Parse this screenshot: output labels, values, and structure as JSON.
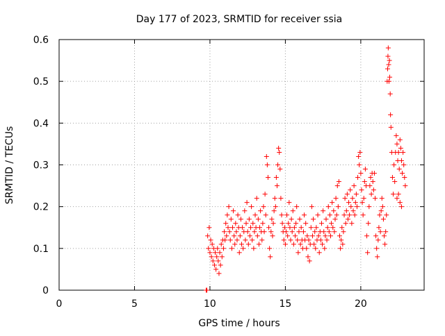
{
  "chart_data": {
    "type": "scatter",
    "title": "Day 177 of 2023, SRMTID for receiver ssia",
    "xlabel": "GPS time / hours",
    "ylabel": "SRMTID / TECUs",
    "xlim": [
      0,
      24.2
    ],
    "ylim": [
      0,
      0.6
    ],
    "xticks": [
      0,
      5,
      10,
      15,
      20
    ],
    "yticks": [
      0,
      0.1,
      0.2,
      0.3,
      0.4,
      0.5,
      0.6
    ],
    "xtick_labels": [
      "0",
      "5",
      "10",
      "15",
      "20"
    ],
    "ytick_labels": [
      "0",
      "0.1",
      "0.2",
      "0.3",
      "0.4",
      "0.5",
      "0.6"
    ],
    "grid": true,
    "marker": "+",
    "series": [
      {
        "name": "SRMTID",
        "color": "#ff0000",
        "marker": "plus",
        "points": [
          [
            9.75,
            0.0
          ],
          [
            9.8,
            0.0
          ],
          [
            9.85,
            0.13
          ],
          [
            9.9,
            0.1
          ],
          [
            9.95,
            0.15
          ],
          [
            10.0,
            0.09
          ],
          [
            10.05,
            0.12
          ],
          [
            10.1,
            0.08
          ],
          [
            10.15,
            0.11
          ],
          [
            10.2,
            0.07
          ],
          [
            10.25,
            0.1
          ],
          [
            10.3,
            0.06
          ],
          [
            10.35,
            0.09
          ],
          [
            10.4,
            0.05
          ],
          [
            10.45,
            0.08
          ],
          [
            10.5,
            0.1
          ],
          [
            10.55,
            0.07
          ],
          [
            10.6,
            0.04
          ],
          [
            10.65,
            0.09
          ],
          [
            10.7,
            0.06
          ],
          [
            10.75,
            0.11
          ],
          [
            10.8,
            0.08
          ],
          [
            10.85,
            0.12
          ],
          [
            10.9,
            0.1
          ],
          [
            10.95,
            0.14
          ],
          [
            11.0,
            0.12
          ],
          [
            11.05,
            0.16
          ],
          [
            11.1,
            0.13
          ],
          [
            11.15,
            0.18
          ],
          [
            11.2,
            0.15
          ],
          [
            11.25,
            0.2
          ],
          [
            11.3,
            0.14
          ],
          [
            11.35,
            0.12
          ],
          [
            11.4,
            0.17
          ],
          [
            11.45,
            0.1
          ],
          [
            11.5,
            0.15
          ],
          [
            11.55,
            0.19
          ],
          [
            11.6,
            0.13
          ],
          [
            11.65,
            0.11
          ],
          [
            11.7,
            0.16
          ],
          [
            11.75,
            0.14
          ],
          [
            11.8,
            0.12
          ],
          [
            11.85,
            0.18
          ],
          [
            11.9,
            0.15
          ],
          [
            11.95,
            0.09
          ],
          [
            12.0,
            0.13
          ],
          [
            12.05,
            0.17
          ],
          [
            12.1,
            0.11
          ],
          [
            12.15,
            0.15
          ],
          [
            12.2,
            0.1
          ],
          [
            12.25,
            0.14
          ],
          [
            12.3,
            0.19
          ],
          [
            12.35,
            0.12
          ],
          [
            12.4,
            0.16
          ],
          [
            12.45,
            0.21
          ],
          [
            12.5,
            0.14
          ],
          [
            12.55,
            0.11
          ],
          [
            12.6,
            0.17
          ],
          [
            12.65,
            0.13
          ],
          [
            12.7,
            0.15
          ],
          [
            12.75,
            0.2
          ],
          [
            12.8,
            0.12
          ],
          [
            12.85,
            0.16
          ],
          [
            12.9,
            0.1
          ],
          [
            12.95,
            0.14
          ],
          [
            13.0,
            0.18
          ],
          [
            13.05,
            0.15
          ],
          [
            13.1,
            0.22
          ],
          [
            13.15,
            0.13
          ],
          [
            13.2,
            0.17
          ],
          [
            13.25,
            0.11
          ],
          [
            13.3,
            0.15
          ],
          [
            13.35,
            0.19
          ],
          [
            13.4,
            0.14
          ],
          [
            13.45,
            0.12
          ],
          [
            13.5,
            0.16
          ],
          [
            13.55,
            0.2
          ],
          [
            13.6,
            0.14
          ],
          [
            13.65,
            0.23
          ],
          [
            13.7,
            0.18
          ],
          [
            13.75,
            0.32
          ],
          [
            13.8,
            0.3
          ],
          [
            13.85,
            0.27
          ],
          [
            13.9,
            0.15
          ],
          [
            13.95,
            0.1
          ],
          [
            14.0,
            0.08
          ],
          [
            14.05,
            0.14
          ],
          [
            14.1,
            0.17
          ],
          [
            14.15,
            0.13
          ],
          [
            14.2,
            0.16
          ],
          [
            14.25,
            0.19
          ],
          [
            14.3,
            0.22
          ],
          [
            14.35,
            0.2
          ],
          [
            14.4,
            0.27
          ],
          [
            14.45,
            0.25
          ],
          [
            14.5,
            0.3
          ],
          [
            14.55,
            0.34
          ],
          [
            14.6,
            0.33
          ],
          [
            14.65,
            0.29
          ],
          [
            14.7,
            0.22
          ],
          [
            14.75,
            0.18
          ],
          [
            14.8,
            0.16
          ],
          [
            14.85,
            0.14
          ],
          [
            14.9,
            0.12
          ],
          [
            14.95,
            0.15
          ],
          [
            15.0,
            0.11
          ],
          [
            15.05,
            0.14
          ],
          [
            15.1,
            0.18
          ],
          [
            15.15,
            0.13
          ],
          [
            15.2,
            0.16
          ],
          [
            15.25,
            0.21
          ],
          [
            15.3,
            0.15
          ],
          [
            15.35,
            0.12
          ],
          [
            15.4,
            0.17
          ],
          [
            15.45,
            0.14
          ],
          [
            15.5,
            0.19
          ],
          [
            15.55,
            0.11
          ],
          [
            15.6,
            0.15
          ],
          [
            15.65,
            0.13
          ],
          [
            15.7,
            0.16
          ],
          [
            15.75,
            0.2
          ],
          [
            15.8,
            0.12
          ],
          [
            15.85,
            0.09
          ],
          [
            15.9,
            0.14
          ],
          [
            15.95,
            0.17
          ],
          [
            16.0,
            0.11
          ],
          [
            16.05,
            0.15
          ],
          [
            16.1,
            0.12
          ],
          [
            16.15,
            0.1
          ],
          [
            16.2,
            0.14
          ],
          [
            16.25,
            0.18
          ],
          [
            16.3,
            0.12
          ],
          [
            16.35,
            0.16
          ],
          [
            16.4,
            0.1
          ],
          [
            16.45,
            0.13
          ],
          [
            16.5,
            0.08
          ],
          [
            16.55,
            0.12
          ],
          [
            16.6,
            0.07
          ],
          [
            16.65,
            0.11
          ],
          [
            16.7,
            0.15
          ],
          [
            16.75,
            0.2
          ],
          [
            16.8,
            0.13
          ],
          [
            16.85,
            0.17
          ],
          [
            16.9,
            0.11
          ],
          [
            16.95,
            0.14
          ],
          [
            17.0,
            0.1
          ],
          [
            17.05,
            0.15
          ],
          [
            17.1,
            0.12
          ],
          [
            17.15,
            0.18
          ],
          [
            17.2,
            0.13
          ],
          [
            17.25,
            0.09
          ],
          [
            17.3,
            0.14
          ],
          [
            17.35,
            0.12
          ],
          [
            17.4,
            0.16
          ],
          [
            17.45,
            0.11
          ],
          [
            17.5,
            0.19
          ],
          [
            17.55,
            0.14
          ],
          [
            17.6,
            0.1
          ],
          [
            17.65,
            0.13
          ],
          [
            17.7,
            0.17
          ],
          [
            17.75,
            0.12
          ],
          [
            17.8,
            0.15
          ],
          [
            17.85,
            0.2
          ],
          [
            17.9,
            0.14
          ],
          [
            17.95,
            0.18
          ],
          [
            18.0,
            0.13
          ],
          [
            18.05,
            0.16
          ],
          [
            18.1,
            0.21
          ],
          [
            18.15,
            0.15
          ],
          [
            18.2,
            0.19
          ],
          [
            18.25,
            0.14
          ],
          [
            18.3,
            0.17
          ],
          [
            18.35,
            0.22
          ],
          [
            18.4,
            0.18
          ],
          [
            18.45,
            0.25
          ],
          [
            18.5,
            0.2
          ],
          [
            18.55,
            0.26
          ],
          [
            18.6,
            0.13
          ],
          [
            18.65,
            0.1
          ],
          [
            18.7,
            0.12
          ],
          [
            18.75,
            0.15
          ],
          [
            18.8,
            0.11
          ],
          [
            18.85,
            0.14
          ],
          [
            18.9,
            0.18
          ],
          [
            18.95,
            0.22
          ],
          [
            19.0,
            0.16
          ],
          [
            19.05,
            0.19
          ],
          [
            19.1,
            0.23
          ],
          [
            19.15,
            0.17
          ],
          [
            19.2,
            0.21
          ],
          [
            19.25,
            0.18
          ],
          [
            19.3,
            0.24
          ],
          [
            19.35,
            0.2
          ],
          [
            19.4,
            0.16
          ],
          [
            19.45,
            0.22
          ],
          [
            19.5,
            0.19
          ],
          [
            19.55,
            0.25
          ],
          [
            19.6,
            0.18
          ],
          [
            19.65,
            0.21
          ],
          [
            19.7,
            0.23
          ],
          [
            19.75,
            0.2
          ],
          [
            19.8,
            0.27
          ],
          [
            19.85,
            0.32
          ],
          [
            19.9,
            0.3
          ],
          [
            19.95,
            0.33
          ],
          [
            20.0,
            0.28
          ],
          [
            20.05,
            0.24
          ],
          [
            20.1,
            0.21
          ],
          [
            20.15,
            0.18
          ],
          [
            20.2,
            0.22
          ],
          [
            20.25,
            0.26
          ],
          [
            20.3,
            0.29
          ],
          [
            20.35,
            0.25
          ],
          [
            20.4,
            0.13
          ],
          [
            20.45,
            0.09
          ],
          [
            20.5,
            0.16
          ],
          [
            20.55,
            0.2
          ],
          [
            20.6,
            0.25
          ],
          [
            20.65,
            0.27
          ],
          [
            20.7,
            0.23
          ],
          [
            20.75,
            0.28
          ],
          [
            20.8,
            0.26
          ],
          [
            20.85,
            0.24
          ],
          [
            20.9,
            0.28
          ],
          [
            20.95,
            0.22
          ],
          [
            21.0,
            0.13
          ],
          [
            21.05,
            0.1
          ],
          [
            21.1,
            0.08
          ],
          [
            21.15,
            0.12
          ],
          [
            21.2,
            0.15
          ],
          [
            21.25,
            0.18
          ],
          [
            21.3,
            0.14
          ],
          [
            21.35,
            0.19
          ],
          [
            21.4,
            0.22
          ],
          [
            21.45,
            0.2
          ],
          [
            21.5,
            0.17
          ],
          [
            21.55,
            0.13
          ],
          [
            21.6,
            0.11
          ],
          [
            21.65,
            0.14
          ],
          [
            21.7,
            0.18
          ],
          [
            21.75,
            0.5
          ],
          [
            21.78,
            0.53
          ],
          [
            21.8,
            0.56
          ],
          [
            21.82,
            0.58
          ],
          [
            21.85,
            0.54
          ],
          [
            21.87,
            0.5
          ],
          [
            21.9,
            0.55
          ],
          [
            21.92,
            0.51
          ],
          [
            21.95,
            0.47
          ],
          [
            21.97,
            0.42
          ],
          [
            22.0,
            0.39
          ],
          [
            22.05,
            0.33
          ],
          [
            22.1,
            0.27
          ],
          [
            22.15,
            0.23
          ],
          [
            22.2,
            0.3
          ],
          [
            22.25,
            0.26
          ],
          [
            22.3,
            0.33
          ],
          [
            22.35,
            0.37
          ],
          [
            22.4,
            0.35
          ],
          [
            22.45,
            0.31
          ],
          [
            22.5,
            0.33
          ],
          [
            22.55,
            0.29
          ],
          [
            22.6,
            0.36
          ],
          [
            22.65,
            0.34
          ],
          [
            22.7,
            0.31
          ],
          [
            22.75,
            0.28
          ],
          [
            22.8,
            0.33
          ],
          [
            22.85,
            0.3
          ],
          [
            22.9,
            0.27
          ],
          [
            22.95,
            0.25
          ],
          [
            22.6,
            0.21
          ],
          [
            22.7,
            0.2
          ],
          [
            22.5,
            0.23
          ],
          [
            22.4,
            0.22
          ]
        ]
      }
    ]
  }
}
